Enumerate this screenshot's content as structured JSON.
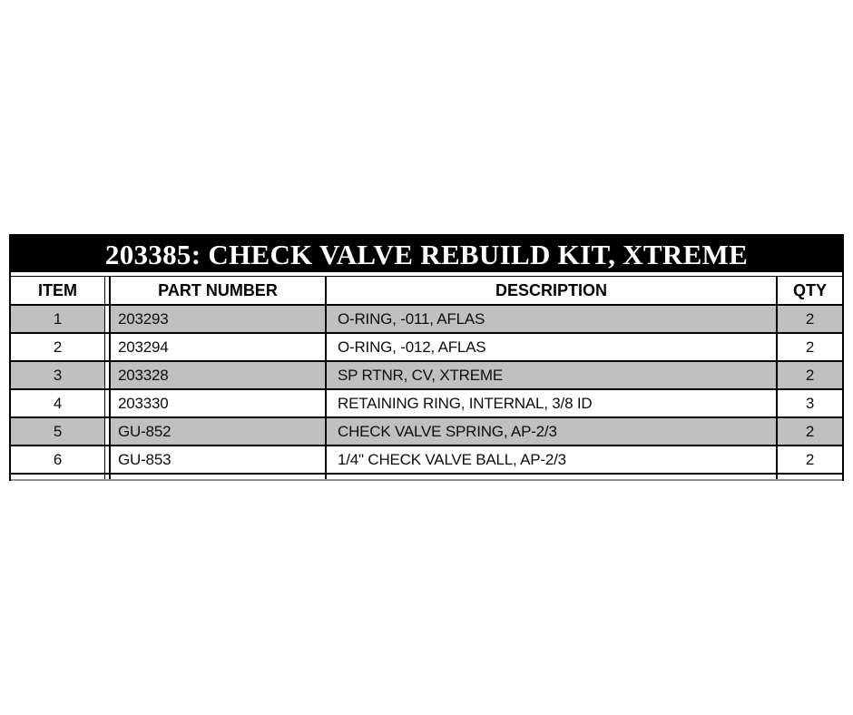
{
  "table": {
    "title": "203385: CHECK VALVE REBUILD KIT, XTREME",
    "columns": [
      "ITEM",
      "PART NUMBER",
      "DESCRIPTION",
      "QTY"
    ],
    "rows": [
      {
        "item": "1",
        "part_number": "203293",
        "description": "O-RING, -011, AFLAS",
        "qty": "2"
      },
      {
        "item": "2",
        "part_number": "203294",
        "description": "O-RING, -012, AFLAS",
        "qty": "2"
      },
      {
        "item": "3",
        "part_number": "203328",
        "description": "SP RTNR, CV, XTREME",
        "qty": "2"
      },
      {
        "item": "4",
        "part_number": "203330",
        "description": "RETAINING RING, INTERNAL, 3/8 ID",
        "qty": "3"
      },
      {
        "item": "5",
        "part_number": "GU-852",
        "description": "CHECK VALVE SPRING, AP-2/3",
        "qty": "2"
      },
      {
        "item": "6",
        "part_number": "GU-853",
        "description": "1/4\" CHECK VALVE BALL, AP-2/3",
        "qty": "2"
      }
    ],
    "colors": {
      "title_bg": "#000000",
      "title_fg": "#ffffff",
      "row_shade": "#c0c0c0",
      "row_plain": "#ffffff",
      "grid_line": "#000000"
    }
  }
}
